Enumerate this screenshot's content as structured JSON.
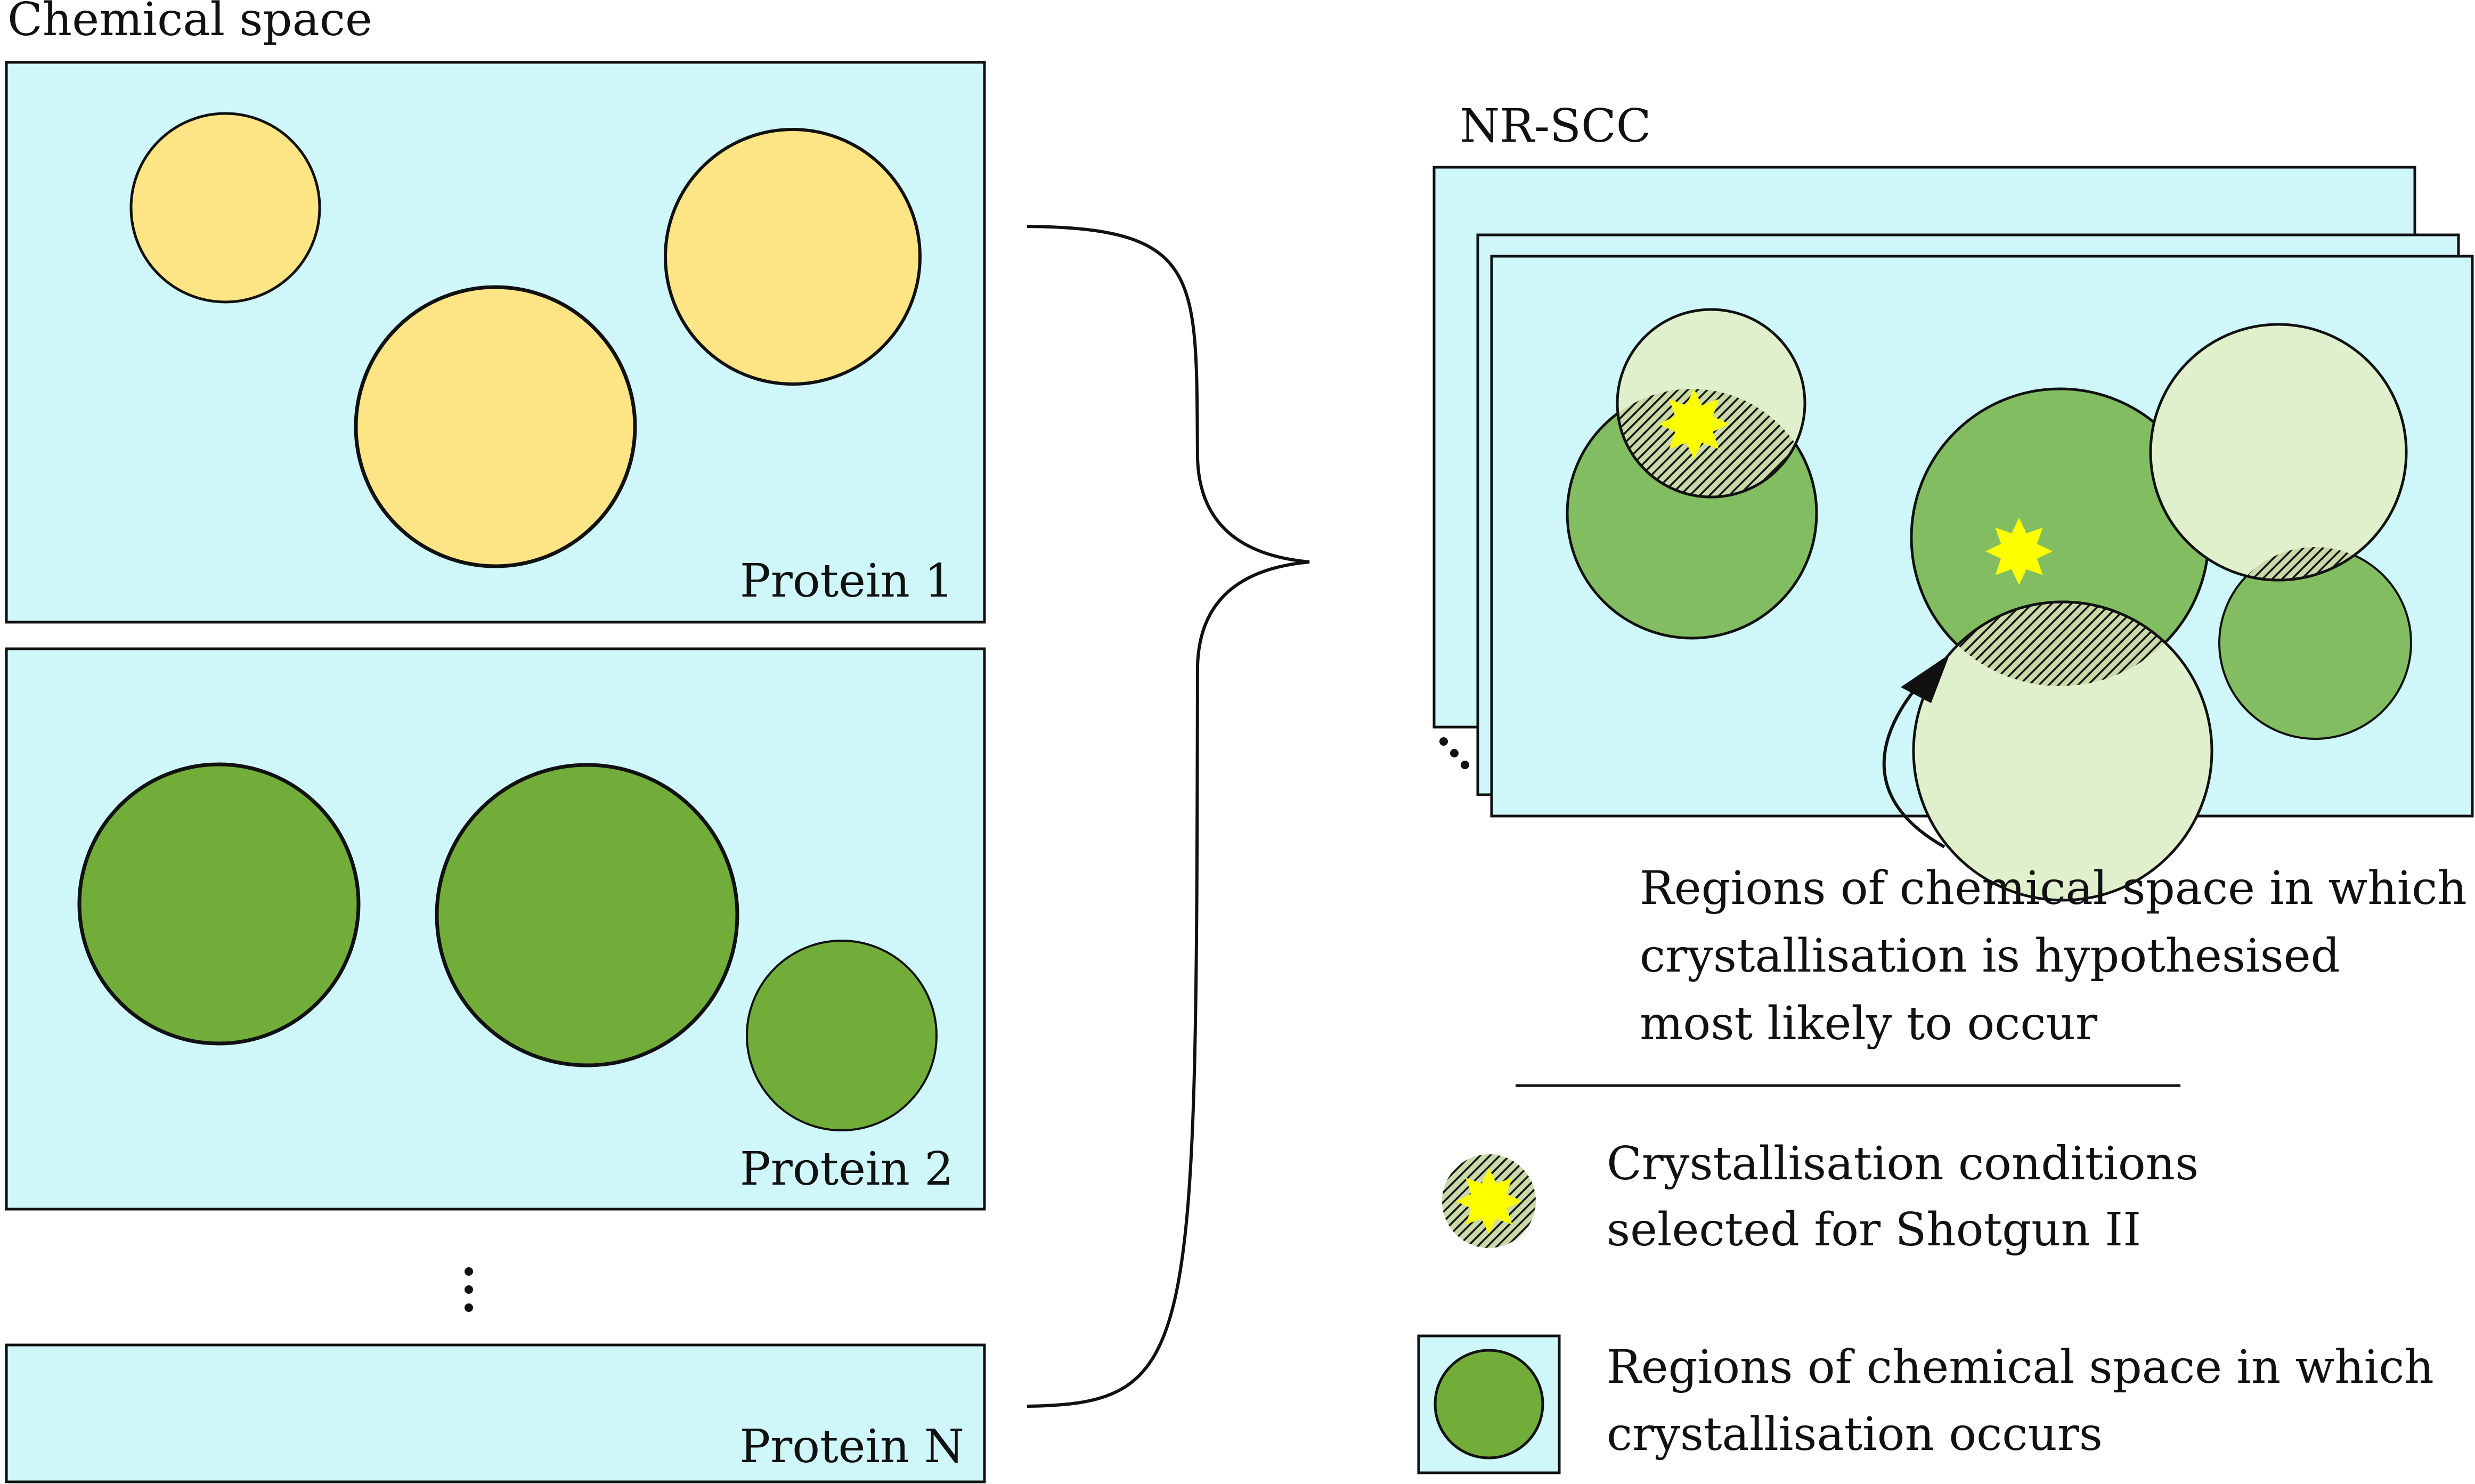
{
  "title": "Chemical space",
  "colors": {
    "background_box": "#cff7fa",
    "protein1_circle": "#fde485",
    "protein2_circle": "#72ad3a",
    "scc_green": "#83bd62",
    "scc_pale": "#e0f0cd",
    "star": "#ffff00",
    "stroke": "#111111"
  },
  "panels": [
    {
      "label": "Protein 1",
      "circle_color": "yellow"
    },
    {
      "label": "Protein 2",
      "circle_color": "green"
    },
    {
      "label": "Protein N",
      "circle_color": "none"
    }
  ],
  "ellipsis_vertical": "⋮",
  "ellipsis_stack": "⋱",
  "scc": {
    "title": "NR-SCC"
  },
  "annotation": {
    "lines": [
      "Regions of chemical space in which",
      "crystallisation is hypothesised",
      "most likely to occur"
    ]
  },
  "legend": {
    "hatched": {
      "icon": "hatched-star-icon",
      "lines": [
        "Crystallisation conditions",
        "selected for Shotgun II"
      ]
    },
    "region": {
      "icon": "green-circle-icon",
      "lines": [
        "Regions of chemical space in which",
        "crystallisation occurs"
      ]
    }
  }
}
